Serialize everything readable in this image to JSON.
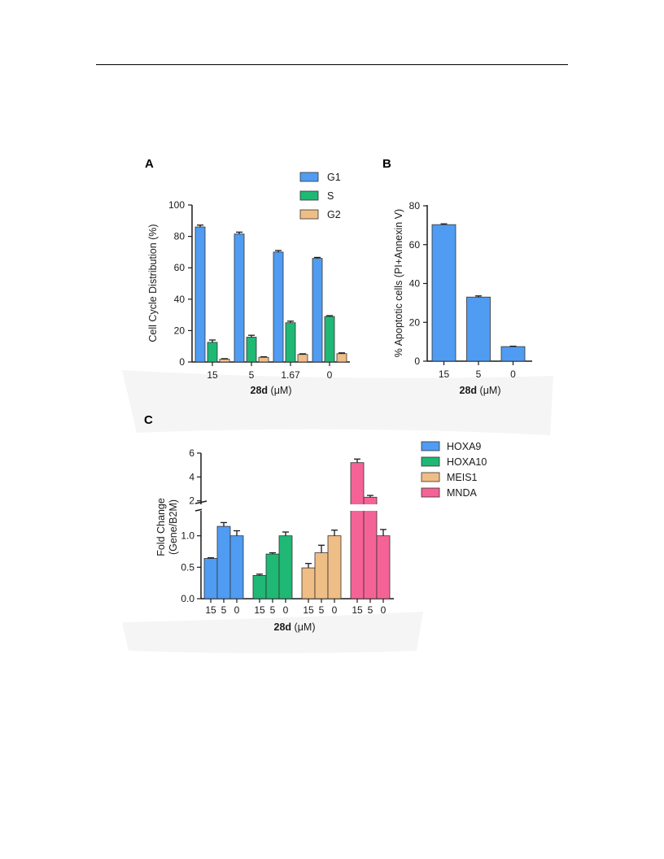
{
  "colors": {
    "blue": "#4f9cf2",
    "green": "#1fb874",
    "tan": "#efbd86",
    "pink": "#f56396"
  },
  "chart_data": [
    {
      "panel": "A",
      "type": "bar",
      "xlabel_bold": "28d",
      "xlabel_rest": " (μM)",
      "ylabel": "Cell Cycle Distribution (%)",
      "categories": [
        "15",
        "5",
        "1.67",
        "0"
      ],
      "ylim": [
        0,
        100
      ],
      "yticks": [
        "0",
        "20",
        "40",
        "60",
        "80",
        "100"
      ],
      "legend_position": "top-right",
      "series": [
        {
          "name": "G1",
          "color": "#4f9cf2",
          "values": [
            86,
            81.5,
            70,
            66
          ],
          "errors": [
            1.2,
            1.2,
            1.0,
            0.6
          ]
        },
        {
          "name": "S",
          "color": "#1fb874",
          "values": [
            12.5,
            15.8,
            25,
            29
          ],
          "errors": [
            1.5,
            1.2,
            1.0,
            0.5
          ]
        },
        {
          "name": "G2",
          "color": "#efbd86",
          "values": [
            1.8,
            3,
            4.8,
            5.3
          ],
          "errors": [
            0.3,
            0.3,
            0.4,
            0.5
          ]
        }
      ]
    },
    {
      "panel": "B",
      "type": "bar",
      "xlabel_bold": "28d",
      "xlabel_rest": " (μM)",
      "ylabel": "% Apoptotic cells (PI+Annexin V)",
      "categories": [
        "15",
        "5",
        "0"
      ],
      "ylim": [
        0,
        80
      ],
      "yticks": [
        "0",
        "20",
        "40",
        "60",
        "80"
      ],
      "series": [
        {
          "color": "#4f9cf2",
          "values": [
            70.3,
            33,
            7.5
          ],
          "errors": [
            0.4,
            0.6,
            0.2
          ]
        }
      ]
    },
    {
      "panel": "C",
      "type": "bar",
      "xlabel_bold": "28d",
      "xlabel_rest": " (μM)",
      "ylabel_line1": "Fold Change",
      "ylabel_line2": "(Gene/B2M)",
      "ylim_lower": [
        0,
        1.5
      ],
      "yticks_lower": [
        "0.0",
        "0.5",
        "1.0"
      ],
      "ylim_upper": [
        1.5,
        6
      ],
      "yticks_upper": [
        "2",
        "4",
        "6"
      ],
      "y_axis_break": true,
      "legend_position": "right",
      "groups": [
        {
          "name": "HOXA9",
          "color": "#4f9cf2",
          "categories": [
            "15",
            "5",
            "0"
          ],
          "values": [
            0.64,
            1.15,
            1.0
          ],
          "errors": [
            0.01,
            0.06,
            0.08
          ]
        },
        {
          "name": "HOXA10",
          "color": "#1fb874",
          "categories": [
            "15",
            "5",
            "0"
          ],
          "values": [
            0.37,
            0.71,
            1.0
          ],
          "errors": [
            0.02,
            0.02,
            0.06
          ]
        },
        {
          "name": "MEIS1",
          "color": "#efbd86",
          "categories": [
            "15",
            "5",
            "0"
          ],
          "values": [
            0.49,
            0.73,
            1.0
          ],
          "errors": [
            0.07,
            0.12,
            0.09
          ]
        },
        {
          "name": "MNDA",
          "color": "#f56396",
          "categories": [
            "15",
            "5",
            "0"
          ],
          "values": [
            5.2,
            2.3,
            1.0
          ],
          "errors": [
            0.3,
            0.15,
            0.1
          ]
        }
      ]
    }
  ]
}
